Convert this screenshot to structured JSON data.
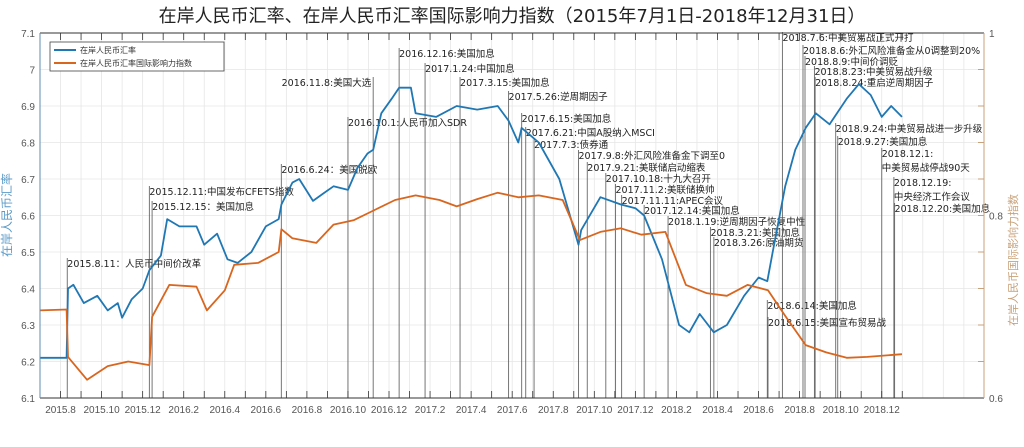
{
  "chart_data": {
    "type": "line",
    "title": "在岸人民币汇率、在岸人民币汇率国际影响力指数（2015年7月1日-2018年12月31日）",
    "ylabel": "在岸人民币汇率",
    "y2label": "在岸人民币国际影响力指数",
    "ylim": [
      6.1,
      7.1
    ],
    "y2lim": [
      0.6,
      1.0
    ],
    "xlim": [
      "2015-07-01",
      "2018-12-31"
    ],
    "grid": true,
    "legend_position": "top-left",
    "yticks": [
      "6.1",
      "6.2",
      "6.3",
      "6.4",
      "6.5",
      "6.6",
      "6.7",
      "6.8",
      "6.9",
      "7",
      "7.1"
    ],
    "y2ticks": [
      "0.6",
      "0.8",
      "1"
    ],
    "xticks": [
      "2015.8",
      "2015.10",
      "2015.12",
      "2016.2",
      "2016.4",
      "2016.6",
      "2016.8",
      "2016.10",
      "2016.12",
      "2017.2",
      "2017.4",
      "2017.6",
      "2017.8",
      "2017.10",
      "2017.12",
      "2018.2",
      "2018.4",
      "2018.6",
      "2018.8",
      "2018.10",
      "2018.12"
    ],
    "colors": {
      "rate": "#1f77b4",
      "index": "#d9661f",
      "axis2": "#c8a27a",
      "event_line": "#555555"
    },
    "series": [
      {
        "name": "在岸人民币汇率",
        "axis": "left",
        "x": [
          "2015-07-01",
          "2015-08-10",
          "2015-08-12",
          "2015-08-20",
          "2015-09-05",
          "2015-09-25",
          "2015-10-10",
          "2015-10-25",
          "2015-11-01",
          "2015-11-15",
          "2015-12-01",
          "2015-12-11",
          "2015-12-28",
          "2016-01-07",
          "2016-01-25",
          "2016-02-20",
          "2016-03-01",
          "2016-03-20",
          "2016-04-05",
          "2016-04-20",
          "2016-05-10",
          "2016-06-01",
          "2016-06-20",
          "2016-06-24",
          "2016-07-10",
          "2016-07-20",
          "2016-08-10",
          "2016-08-25",
          "2016-09-10",
          "2016-10-01",
          "2016-10-15",
          "2016-10-30",
          "2016-11-08",
          "2016-11-20",
          "2016-12-05",
          "2016-12-16",
          "2017-01-03",
          "2017-01-10",
          "2017-02-10",
          "2017-03-10",
          "2017-04-10",
          "2017-05-10",
          "2017-05-26",
          "2017-06-10",
          "2017-06-15",
          "2017-07-10",
          "2017-08-10",
          "2017-09-08",
          "2017-09-12",
          "2017-10-10",
          "2017-11-10",
          "2017-12-01",
          "2017-12-14",
          "2018-01-10",
          "2018-02-05",
          "2018-02-20",
          "2018-03-05",
          "2018-03-26",
          "2018-04-15",
          "2018-05-10",
          "2018-06-01",
          "2018-06-14",
          "2018-06-22",
          "2018-07-10",
          "2018-07-25",
          "2018-08-10",
          "2018-08-25",
          "2018-09-15",
          "2018-10-10",
          "2018-10-28",
          "2018-11-15",
          "2018-12-01",
          "2018-12-15",
          "2018-12-31"
        ],
        "y": [
          6.21,
          6.21,
          6.4,
          6.41,
          6.36,
          6.38,
          6.34,
          6.36,
          6.32,
          6.37,
          6.4,
          6.45,
          6.49,
          6.59,
          6.57,
          6.57,
          6.52,
          6.55,
          6.48,
          6.47,
          6.5,
          6.57,
          6.59,
          6.63,
          6.69,
          6.7,
          6.64,
          6.66,
          6.68,
          6.67,
          6.73,
          6.77,
          6.78,
          6.88,
          6.92,
          6.95,
          6.95,
          6.88,
          6.87,
          6.9,
          6.89,
          6.9,
          6.86,
          6.8,
          6.84,
          6.8,
          6.7,
          6.52,
          6.56,
          6.65,
          6.63,
          6.62,
          6.6,
          6.48,
          6.3,
          6.28,
          6.33,
          6.28,
          6.3,
          6.38,
          6.43,
          6.42,
          6.5,
          6.68,
          6.78,
          6.84,
          6.88,
          6.85,
          6.92,
          6.96,
          6.93,
          6.87,
          6.9,
          6.87
        ]
      },
      {
        "name": "在岸人民币汇率国际影响力指数",
        "axis": "right",
        "x": [
          "2015-07-01",
          "2015-08-10",
          "2015-08-12",
          "2015-09-10",
          "2015-10-10",
          "2015-11-10",
          "2015-12-11",
          "2015-12-15",
          "2016-01-10",
          "2016-02-20",
          "2016-03-05",
          "2016-04-01",
          "2016-04-15",
          "2016-05-20",
          "2016-06-20",
          "2016-06-24",
          "2016-07-10",
          "2016-08-15",
          "2016-09-10",
          "2016-10-10",
          "2016-11-10",
          "2016-12-10",
          "2017-01-10",
          "2017-02-15",
          "2017-03-10",
          "2017-04-10",
          "2017-05-10",
          "2017-06-10",
          "2017-07-10",
          "2017-08-15",
          "2017-09-10",
          "2017-10-10",
          "2017-11-10",
          "2017-12-10",
          "2018-01-15",
          "2018-02-15",
          "2018-03-15",
          "2018-04-15",
          "2018-05-15",
          "2018-06-15",
          "2018-07-10",
          "2018-08-10",
          "2018-09-10",
          "2018-10-10",
          "2018-11-10",
          "2018-12-31"
        ],
        "y": [
          0.696,
          0.697,
          0.645,
          0.62,
          0.635,
          0.64,
          0.636,
          0.689,
          0.724,
          0.722,
          0.696,
          0.718,
          0.746,
          0.748,
          0.76,
          0.785,
          0.775,
          0.77,
          0.79,
          0.795,
          0.806,
          0.817,
          0.822,
          0.817,
          0.81,
          0.818,
          0.825,
          0.82,
          0.822,
          0.817,
          0.773,
          0.782,
          0.786,
          0.779,
          0.782,
          0.724,
          0.715,
          0.712,
          0.724,
          0.718,
          0.69,
          0.658,
          0.65,
          0.644,
          0.645,
          0.648
        ]
      }
    ],
    "events": [
      {
        "date": "2015-08-11",
        "lines": [
          "2015.8.11：人民币中间价改革"
        ]
      },
      {
        "date": "2015-12-11",
        "lines": [
          "2015.12.11:中国发布CFETS指数"
        ]
      },
      {
        "date": "2015-12-15",
        "lines": [
          "2015.12.15：美国加息"
        ]
      },
      {
        "date": "2016-06-24",
        "lines": [
          "2016.6.24：美国脱欧"
        ]
      },
      {
        "date": "2016-10-01",
        "lines": [
          "2016.10.1:人民币加入SDR"
        ]
      },
      {
        "date": "2016-11-08",
        "lines": [
          "2016.11.8:美国大选"
        ]
      },
      {
        "date": "2016-12-16",
        "lines": [
          "2016.12.16:美国加息"
        ]
      },
      {
        "date": "2017-01-24",
        "lines": [
          "2017.1.24:中国加息"
        ]
      },
      {
        "date": "2017-03-15",
        "lines": [
          "2017.3.15:美国加息"
        ]
      },
      {
        "date": "2017-05-26",
        "lines": [
          "2017.5.26:逆周期因子"
        ]
      },
      {
        "date": "2017-06-15",
        "lines": [
          "2017.6.15:美国加息"
        ]
      },
      {
        "date": "2017-06-21",
        "lines": [
          "2017.6.21:中国A股纳入MSCI"
        ]
      },
      {
        "date": "2017-07-03",
        "lines": [
          "2017.7.3:债券通"
        ]
      },
      {
        "date": "2017-09-08",
        "lines": [
          "2017.9.8:外汇风险准备金下调至0"
        ]
      },
      {
        "date": "2017-09-21",
        "lines": [
          "2017.9.21:美联储启动缩表"
        ]
      },
      {
        "date": "2017-10-18",
        "lines": [
          "2017.10.18:十九大召开"
        ]
      },
      {
        "date": "2017-11-02",
        "lines": [
          "2017.11.2:美联储换帅"
        ]
      },
      {
        "date": "2017-11-11",
        "lines": [
          "2017.11.11:APEC会议"
        ]
      },
      {
        "date": "2017-12-14",
        "lines": [
          "2017.12.14:美国加息"
        ]
      },
      {
        "date": "2018-01-19",
        "lines": [
          "2018.1.19:逆周期因子恢复中性"
        ]
      },
      {
        "date": "2018-03-21",
        "lines": [
          "2018.3.21:美国加息"
        ]
      },
      {
        "date": "2018-03-26",
        "lines": [
          "2018.3.26:原油期货"
        ]
      },
      {
        "date": "2018-06-14",
        "lines": [
          "2018.6.14:美国加息"
        ]
      },
      {
        "date": "2018-06-15",
        "lines": [
          "2018.6.15:美国宣布贸易战"
        ]
      },
      {
        "date": "2018-07-06",
        "lines": [
          "2018.7.6:中美贸易战正式开打"
        ]
      },
      {
        "date": "2018-08-06",
        "lines": [
          "2018.8.6:外汇风险准备金从0调整到20%"
        ]
      },
      {
        "date": "2018-08-09",
        "lines": [
          "2018.8.9:中间价调贬"
        ]
      },
      {
        "date": "2018-08-23",
        "lines": [
          "2018.8.23:中美贸易战升级"
        ]
      },
      {
        "date": "2018-08-24",
        "lines": [
          "2018.8.24:重启逆周期因子"
        ]
      },
      {
        "date": "2018-09-24",
        "lines": [
          "2018.9.24:中美贸易战进一步升级"
        ]
      },
      {
        "date": "2018-09-27",
        "lines": [
          "2018.9.27:美国加息"
        ]
      },
      {
        "date": "2018-12-01",
        "lines": [
          "2018.12.1:",
          "中美贸易战停战90天"
        ]
      },
      {
        "date": "2018-12-19",
        "lines": [
          "2018.12.19:",
          "中央经济工作会议"
        ]
      },
      {
        "date": "2018-12-20",
        "lines": [
          "2018.12.20:美国加息"
        ]
      }
    ]
  }
}
